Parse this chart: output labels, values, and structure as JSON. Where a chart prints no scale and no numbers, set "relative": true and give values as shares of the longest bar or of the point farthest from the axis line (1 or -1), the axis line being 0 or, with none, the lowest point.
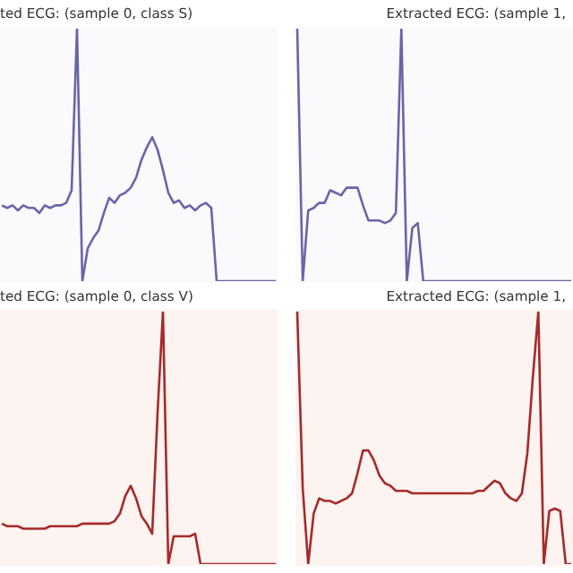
{
  "chart_data": [
    {
      "type": "line",
      "title": "ted ECG: (sample 0, class S)",
      "relative": true,
      "categories": [
        null,
        null,
        null,
        null,
        null,
        null,
        null,
        null,
        null,
        null,
        null,
        null,
        null,
        null,
        null,
        null,
        null,
        null,
        null,
        null,
        null,
        null,
        null,
        null,
        null,
        null,
        null,
        null,
        null,
        null,
        null,
        null,
        null,
        null,
        null,
        null,
        null,
        null,
        null,
        null,
        null,
        null,
        null,
        null,
        null,
        null,
        null,
        null,
        null,
        null,
        null,
        null
      ],
      "series": [
        {
          "color": "#6a64a8",
          "values": [
            0.3,
            0.29,
            0.3,
            0.28,
            0.3,
            0.29,
            0.29,
            0.27,
            0.3,
            0.29,
            0.3,
            0.3,
            0.31,
            0.36,
            1,
            0,
            0.13,
            0.17,
            0.2,
            0.27,
            0.33,
            0.31,
            0.34,
            0.35,
            0.37,
            0.41,
            0.48,
            0.53,
            0.57,
            0.52,
            0.44,
            0.35,
            0.31,
            0.32,
            0.29,
            0.3,
            0.28,
            0.3,
            0.31,
            0.29,
            0,
            0,
            0,
            0,
            0,
            0,
            0,
            0,
            0,
            0,
            0,
            0
          ]
        }
      ]
    },
    {
      "type": "line",
      "title": "Extracted ECG: (sample 1,",
      "relative": true,
      "categories": [
        null,
        null,
        null,
        null,
        null,
        null,
        null,
        null,
        null,
        null,
        null,
        null,
        null,
        null,
        null,
        null,
        null,
        null,
        null,
        null,
        null,
        null,
        null,
        null,
        null,
        null,
        null,
        null,
        null,
        null,
        null,
        null,
        null,
        null,
        null,
        null,
        null,
        null,
        null,
        null,
        null,
        null,
        null,
        null,
        null,
        null,
        null,
        null,
        null,
        null,
        null
      ],
      "series": [
        {
          "color": "#6a64a8",
          "values": [
            1,
            0,
            0.28,
            0.29,
            0.31,
            0.31,
            0.36,
            0.35,
            0.34,
            0.37,
            0.37,
            0.37,
            0.3,
            0.24,
            0.24,
            0.24,
            0.23,
            0.24,
            0.27,
            1,
            0,
            0.21,
            0.23,
            0,
            0,
            0,
            0,
            0,
            0,
            0,
            0,
            0,
            0,
            0,
            0,
            0,
            0,
            0,
            0,
            0,
            0,
            0,
            0,
            0,
            0,
            0,
            0,
            0,
            0,
            0,
            0
          ]
        }
      ]
    },
    {
      "type": "line",
      "title": "ted ECG: (sample 0, class V)",
      "relative": true,
      "categories": [
        null,
        null,
        null,
        null,
        null,
        null,
        null,
        null,
        null,
        null,
        null,
        null,
        null,
        null,
        null,
        null,
        null,
        null,
        null,
        null,
        null,
        null,
        null,
        null,
        null,
        null,
        null,
        null,
        null,
        null,
        null,
        null,
        null,
        null,
        null,
        null,
        null,
        null,
        null,
        null,
        null,
        null,
        null,
        null,
        null,
        null,
        null,
        null,
        null,
        null,
        null,
        null
      ],
      "series": [
        {
          "color": "#a52a2a",
          "values": [
            0.16,
            0.15,
            0.15,
            0.15,
            0.14,
            0.14,
            0.14,
            0.14,
            0.14,
            0.15,
            0.15,
            0.15,
            0.15,
            0.15,
            0.15,
            0.16,
            0.16,
            0.16,
            0.16,
            0.16,
            0.16,
            0.17,
            0.2,
            0.27,
            0.31,
            0.26,
            0.19,
            0.16,
            0.12,
            0.6,
            1,
            0,
            0.11,
            0.11,
            0.11,
            0.11,
            0.12,
            0,
            0,
            0,
            0,
            0,
            0,
            0,
            0,
            0,
            0,
            0,
            0,
            0,
            0,
            0
          ]
        }
      ]
    },
    {
      "type": "line",
      "title": "Extracted ECG: (sample 1,",
      "relative": true,
      "categories": [
        null,
        null,
        null,
        null,
        null,
        null,
        null,
        null,
        null,
        null,
        null,
        null,
        null,
        null,
        null,
        null,
        null,
        null,
        null,
        null,
        null,
        null,
        null,
        null,
        null,
        null,
        null,
        null,
        null,
        null,
        null,
        null,
        null,
        null,
        null,
        null,
        null,
        null,
        null,
        null,
        null,
        null,
        null,
        null,
        null,
        null,
        null,
        null,
        null,
        null,
        null
      ],
      "series": [
        {
          "color": "#a52a2a",
          "values": [
            1,
            0.3,
            0,
            0.2,
            0.26,
            0.25,
            0.25,
            0.24,
            0.25,
            0.26,
            0.28,
            0.36,
            0.45,
            0.45,
            0.41,
            0.35,
            0.32,
            0.31,
            0.29,
            0.29,
            0.29,
            0.28,
            0.28,
            0.28,
            0.28,
            0.28,
            0.28,
            0.28,
            0.28,
            0.28,
            0.28,
            0.28,
            0.28,
            0.29,
            0.29,
            0.31,
            0.33,
            0.32,
            0.28,
            0.26,
            0.25,
            0.28,
            0.44,
            0.74,
            1,
            0,
            0.21,
            0.22,
            0.21,
            0,
            0
          ]
        }
      ]
    }
  ]
}
